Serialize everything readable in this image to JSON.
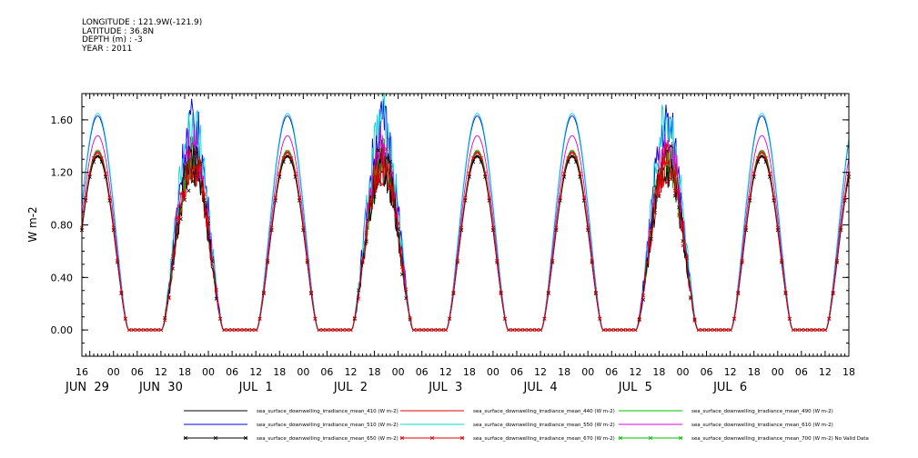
{
  "header": {
    "longitude": "LONGITUDE : 121.9W(-121.9)",
    "latitude": "LATITUDE : 36.8N",
    "depth": "DEPTH (m) : -3",
    "year": "YEAR : 2011"
  },
  "chart_data": {
    "type": "line",
    "title": "",
    "ylabel": "W m-2",
    "ylim": [
      -0.2,
      1.8
    ],
    "yticks": [
      "0.00",
      "0.40",
      "0.80",
      "1.20",
      "1.60"
    ],
    "ytick_values": [
      0,
      0.4,
      0.8,
      1.2,
      1.6
    ],
    "xlim_hours": [
      0,
      194
    ],
    "hour_ticks": [
      "16",
      "00",
      "06",
      "12",
      "18",
      "00",
      "06",
      "12",
      "18",
      "00",
      "06",
      "12",
      "18",
      "00",
      "06",
      "12",
      "18",
      "00",
      "06",
      "12",
      "18",
      "00",
      "06",
      "12",
      "18",
      "00",
      "06",
      "12",
      "18",
      "00",
      "06",
      "12",
      "18"
    ],
    "date_labels": [
      {
        "text": "JUN 29",
        "hour": 0
      },
      {
        "text": "JUN 30",
        "hour": 20
      },
      {
        "text": "JUL 1",
        "hour": 44
      },
      {
        "text": "JUL 2",
        "hour": 68
      },
      {
        "text": "JUL 3",
        "hour": 92
      },
      {
        "text": "JUL 4",
        "hour": 116
      },
      {
        "text": "JUL 5",
        "hour": 140
      },
      {
        "text": "JUL 6",
        "hour": 164
      }
    ],
    "grid": false,
    "legend_position": "bottom",
    "daily_peak_hour": 4,
    "day_half_width_hours": 7.8,
    "cloudy_days": [
      1,
      3,
      6
    ],
    "series": [
      {
        "name": "sea_surface_downwelling_irradiance_mean_410 (W m-2)",
        "color": "#000000",
        "peak": 1.33,
        "marker": false
      },
      {
        "name": "sea_surface_downwelling_irradiance_mean_440 (W m-2)",
        "color": "#e00000",
        "peak": 1.36,
        "marker": false
      },
      {
        "name": "sea_surface_downwelling_irradiance_mean_490 (W m-2)",
        "color": "#00c000",
        "peak": 1.37,
        "marker": false
      },
      {
        "name": "sea_surface_downwelling_irradiance_mean_510 (W m-2)",
        "color": "#0000e0",
        "peak": 1.63,
        "marker": false
      },
      {
        "name": "sea_surface_downwelling_irradiance_mean_550 (W m-2)",
        "color": "#00d8d8",
        "peak": 1.65,
        "marker": false
      },
      {
        "name": "sea_surface_downwelling_irradiance_mean_610 (W m-2)",
        "color": "#e000e0",
        "peak": 1.48,
        "marker": false
      },
      {
        "name": "sea_surface_downwelling_irradiance_mean_650 (W m-2)",
        "color": "#000000",
        "peak": 1.32,
        "marker": true
      },
      {
        "name": "sea_surface_downwelling_irradiance_mean_670 (W m-2)",
        "color": "#e00000",
        "peak": 1.35,
        "marker": true
      },
      {
        "name": "sea_surface_downwelling_irradiance_mean_700 (W m-2) No Valid Data",
        "color": "#00c000",
        "peak": null,
        "marker": true
      }
    ]
  }
}
